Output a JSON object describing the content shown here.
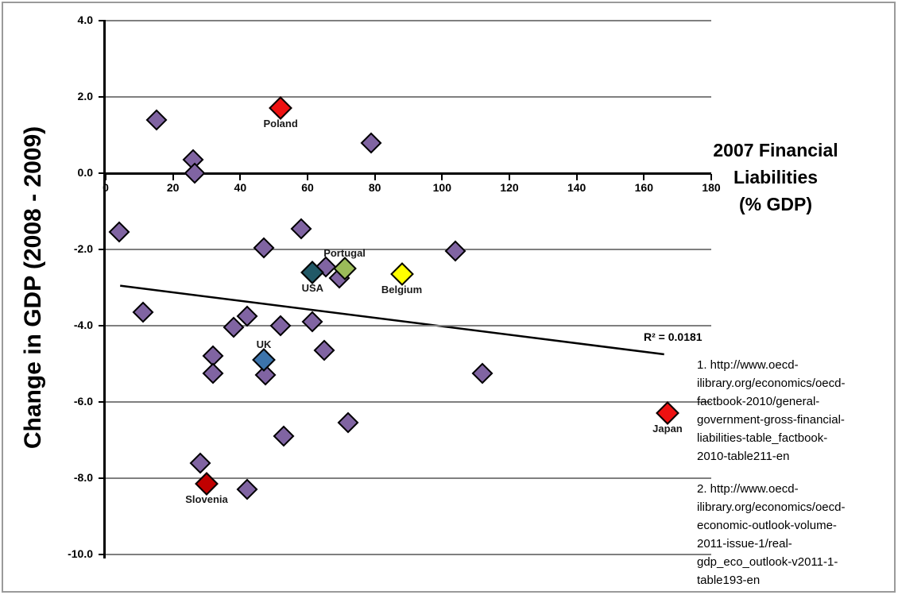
{
  "right_title": {
    "lines": [
      "2007 Financial",
      "Liabilities",
      "(% GDP)"
    ]
  },
  "annotations": {
    "r_squared_label": "R² = 0.0181"
  },
  "citations": [
    {
      "lines": [
        "1. http://www.oecd-",
        "ilibrary.org/economics/oecd-",
        "factbook-2010/general-",
        "government-gross-financial-",
        "liabilities-table_factbook-",
        "2010-table211-en"
      ]
    },
    {
      "lines": [
        "2. http://www.oecd-",
        "ilibrary.org/economics/oecd-",
        "economic-outlook-volume-",
        "2011-issue-1/real-",
        "gdp_eco_outlook-v2011-1-",
        "table193-en"
      ]
    }
  ],
  "colors": {
    "purple": "#8064A2",
    "red": "#EE1111",
    "dark_red": "#C00000",
    "usa_blue": "#215967",
    "uk_blue": "#3C74AC",
    "portugal_green": "#9BBB59",
    "belgium_yellow": "#FFFF00",
    "gridline": "#7F7F7F",
    "axis": "#000000"
  },
  "chart_data": {
    "type": "scatter",
    "title": "",
    "xlabel": "2007 Financial Liabilities (% GDP)",
    "ylabel": "Change in GDP (2008 - 2009)",
    "xlim": [
      0,
      180
    ],
    "ylim": [
      -10,
      4
    ],
    "x_ticks": [
      0,
      20,
      40,
      60,
      80,
      100,
      120,
      140,
      160,
      180
    ],
    "y_ticks": [
      4,
      2,
      0,
      -2,
      -4,
      -6,
      -8,
      -10
    ],
    "y_tick_labels": [
      "4.0",
      "2.0",
      "0.0",
      "-2.0",
      "-4.0",
      "-6.0",
      "-8.0",
      "-10.0"
    ],
    "grid": "horizontal",
    "legend": "none",
    "labeled_points": [
      {
        "label": "Poland",
        "x": 52,
        "y": 1.7,
        "color_key": "red",
        "label_pos": "below"
      },
      {
        "label": "USA",
        "x": 61.5,
        "y": -2.6,
        "color_key": "usa_blue",
        "label_pos": "below"
      },
      {
        "label": "Portugal",
        "x": 71,
        "y": -2.5,
        "color_key": "portugal_green",
        "label_pos": "above"
      },
      {
        "label": "Belgium",
        "x": 88,
        "y": -2.65,
        "color_key": "belgium_yellow",
        "label_pos": "below"
      },
      {
        "label": "UK",
        "x": 47,
        "y": -4.9,
        "color_key": "uk_blue",
        "label_pos": "above"
      },
      {
        "label": "Slovenia",
        "x": 30,
        "y": -8.15,
        "color_key": "dark_red",
        "label_pos": "below"
      },
      {
        "label": "Japan",
        "x": 167,
        "y": -6.3,
        "color_key": "red",
        "label_pos": "below"
      }
    ],
    "unlabeled_points": [
      [
        15,
        1.4
      ],
      [
        26,
        0.35
      ],
      [
        26.5,
        0.0
      ],
      [
        79,
        0.8
      ],
      [
        4,
        -1.55
      ],
      [
        58,
        -1.45
      ],
      [
        47,
        -1.95
      ],
      [
        104,
        -2.05
      ],
      [
        65.5,
        -2.45
      ],
      [
        69.5,
        -2.75
      ],
      [
        11,
        -3.65
      ],
      [
        38,
        -4.05
      ],
      [
        42,
        -3.75
      ],
      [
        52,
        -4.0
      ],
      [
        61.5,
        -3.9
      ],
      [
        32,
        -4.8
      ],
      [
        32,
        -5.25
      ],
      [
        47.5,
        -5.3
      ],
      [
        65,
        -4.65
      ],
      [
        112,
        -5.25
      ],
      [
        53,
        -6.9
      ],
      [
        72,
        -6.55
      ],
      [
        28,
        -7.6
      ],
      [
        42,
        -8.3
      ]
    ],
    "trendline": {
      "x1": 4.3,
      "y1": -2.95,
      "x2": 166,
      "y2": -4.75,
      "r_squared": 0.0181
    }
  }
}
